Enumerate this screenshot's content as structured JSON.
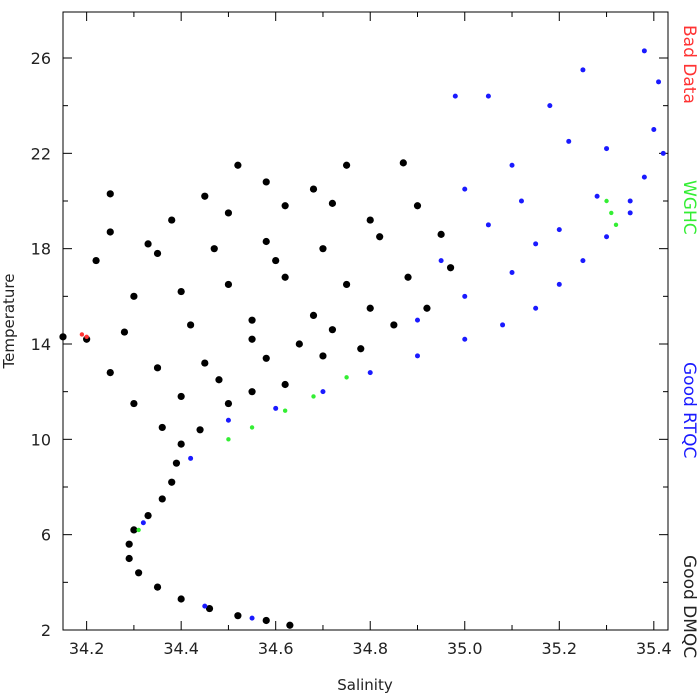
{
  "chart_data": {
    "type": "scatter",
    "x_label": "Salinity",
    "y_label": "Temperature",
    "xlim": [
      34.15,
      35.43
    ],
    "ylim": [
      2,
      27.93
    ],
    "xticks": [
      {
        "value": 34.2,
        "label": "34.2"
      },
      {
        "value": 34.4,
        "label": "34.4"
      },
      {
        "value": 34.6,
        "label": "34.6"
      },
      {
        "value": 34.8,
        "label": "34.8"
      },
      {
        "value": 35.0,
        "label": "35.0"
      },
      {
        "value": 35.2,
        "label": "35.2"
      },
      {
        "value": 35.4,
        "label": "35.4"
      }
    ],
    "xminorticks": [
      34.3,
      34.5,
      34.7,
      34.9,
      35.1,
      35.3
    ],
    "yticks": [
      2,
      6,
      10,
      14,
      18,
      22,
      26
    ],
    "yminorticks": [
      4,
      8,
      12,
      16,
      20,
      24
    ],
    "series": [
      {
        "name": "Good DMQC",
        "color": "#000000",
        "size": 3.6,
        "x": [
          34.63,
          34.58,
          34.52,
          34.46,
          34.4,
          34.35,
          34.31,
          34.29,
          34.29,
          34.3,
          34.33,
          34.36,
          34.38,
          34.39,
          34.4,
          34.36,
          34.44,
          34.3,
          34.4,
          34.5,
          34.55,
          34.62,
          34.25,
          34.35,
          34.45,
          34.58,
          34.7,
          34.78,
          34.2,
          34.15,
          34.28,
          34.42,
          34.55,
          34.68,
          34.85,
          34.92,
          34.3,
          34.4,
          34.5,
          34.62,
          34.75,
          34.88,
          34.97,
          34.22,
          34.35,
          34.47,
          34.58,
          34.7,
          34.82,
          34.95,
          34.25,
          34.38,
          34.5,
          34.62,
          34.72,
          34.8,
          34.9,
          34.25,
          34.45,
          34.52,
          34.58,
          34.68,
          34.75,
          34.87,
          34.33,
          34.55,
          34.65,
          34.48,
          34.72,
          34.8,
          34.6
        ],
        "values": [
          2.2,
          2.4,
          2.6,
          2.9,
          3.3,
          3.8,
          4.4,
          5.0,
          5.6,
          6.2,
          6.8,
          7.5,
          8.2,
          9.0,
          9.8,
          10.5,
          10.4,
          11.5,
          11.8,
          11.5,
          12.0,
          12.3,
          12.8,
          13.0,
          13.2,
          13.4,
          13.5,
          13.8,
          14.2,
          14.3,
          14.5,
          14.8,
          15.0,
          15.2,
          14.8,
          15.5,
          16.0,
          16.2,
          16.5,
          16.8,
          16.5,
          16.8,
          17.2,
          17.5,
          17.8,
          18.0,
          18.3,
          18.0,
          18.5,
          18.6,
          18.7,
          19.2,
          19.5,
          19.8,
          19.9,
          19.2,
          19.8,
          20.3,
          20.2,
          21.5,
          20.8,
          20.5,
          21.5,
          21.6,
          18.2,
          14.2,
          14.0,
          12.5,
          14.6,
          15.5,
          17.5
        ]
      },
      {
        "name": "Good RTQC",
        "color": "#1a1aff",
        "size": 2.5,
        "x": [
          34.45,
          34.55,
          34.32,
          34.42,
          34.5,
          34.6,
          34.7,
          34.8,
          34.9,
          35.0,
          35.08,
          35.15,
          35.2,
          35.25,
          35.3,
          35.35,
          35.38,
          35.4,
          35.41,
          35.38,
          35.25,
          35.18,
          35.05,
          34.98,
          35.22,
          35.1,
          35.0,
          35.12,
          35.28,
          35.35,
          35.2,
          35.1,
          35.0,
          34.9,
          35.3,
          35.42,
          35.15,
          35.05,
          34.95
        ],
        "values": [
          3.0,
          2.5,
          6.5,
          9.2,
          10.8,
          11.3,
          12.0,
          12.8,
          13.5,
          14.2,
          14.8,
          15.5,
          16.5,
          17.5,
          18.5,
          20.0,
          21.0,
          23.0,
          25.0,
          26.3,
          25.5,
          24.0,
          24.4,
          24.4,
          22.5,
          21.5,
          20.5,
          20.0,
          20.2,
          19.5,
          18.8,
          17.0,
          16.0,
          15.0,
          22.2,
          22.0,
          18.2,
          19.0,
          17.5
        ]
      },
      {
        "name": "WGHC",
        "color": "#33ee33",
        "size": 2.2,
        "x": [
          34.31,
          34.5,
          34.55,
          34.62,
          34.68,
          34.75,
          35.3,
          35.31,
          35.32
        ],
        "values": [
          6.2,
          10.0,
          10.5,
          11.2,
          11.8,
          12.6,
          20.0,
          19.5,
          19.0
        ]
      },
      {
        "name": "Bad Data",
        "color": "#ff3333",
        "size": 2.2,
        "x": [
          34.19,
          34.2
        ],
        "values": [
          14.4,
          14.3
        ]
      }
    ]
  }
}
